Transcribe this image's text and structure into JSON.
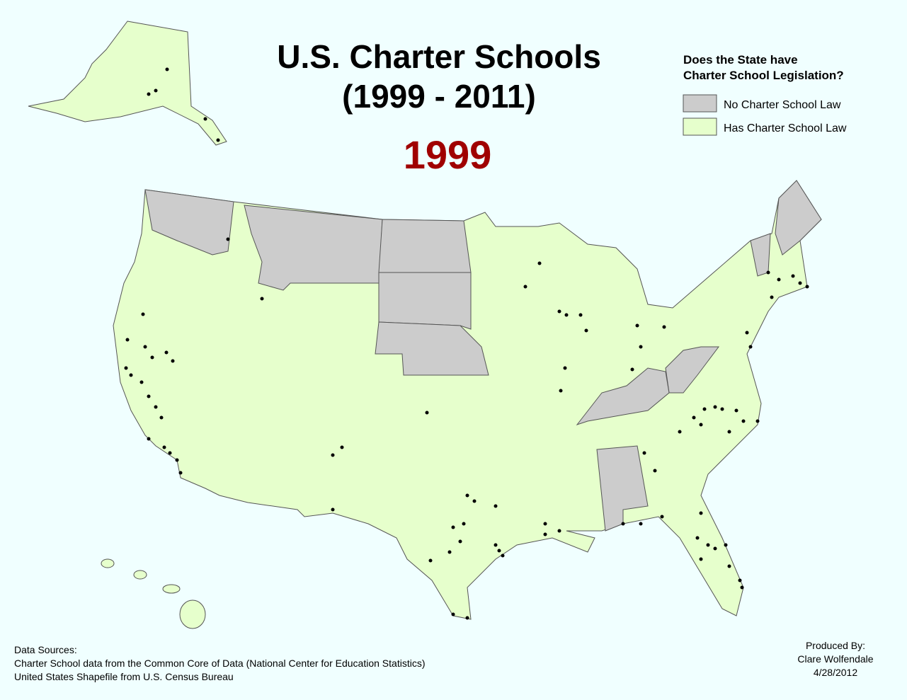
{
  "title": {
    "line1": "U.S. Charter Schools",
    "line2": "(1999 - 2011)"
  },
  "year": "1999",
  "legend": {
    "title_lines": [
      "Does the State have",
      "Charter School Legislation?"
    ],
    "items": [
      {
        "label": "No Charter School Law",
        "color": "#cccccc"
      },
      {
        "label": "Has Charter School Law",
        "color": "#e6ffcc"
      }
    ]
  },
  "sources": {
    "heading": "Data Sources:",
    "lines": [
      "Charter School data from the Common Core of Data (National Center for Education Statistics)",
      "United States Shapefile from U.S. Census Bureau"
    ]
  },
  "credit": {
    "lines": [
      "Produced By:",
      "Clare Wolfendale",
      "4/28/2012"
    ]
  }
}
